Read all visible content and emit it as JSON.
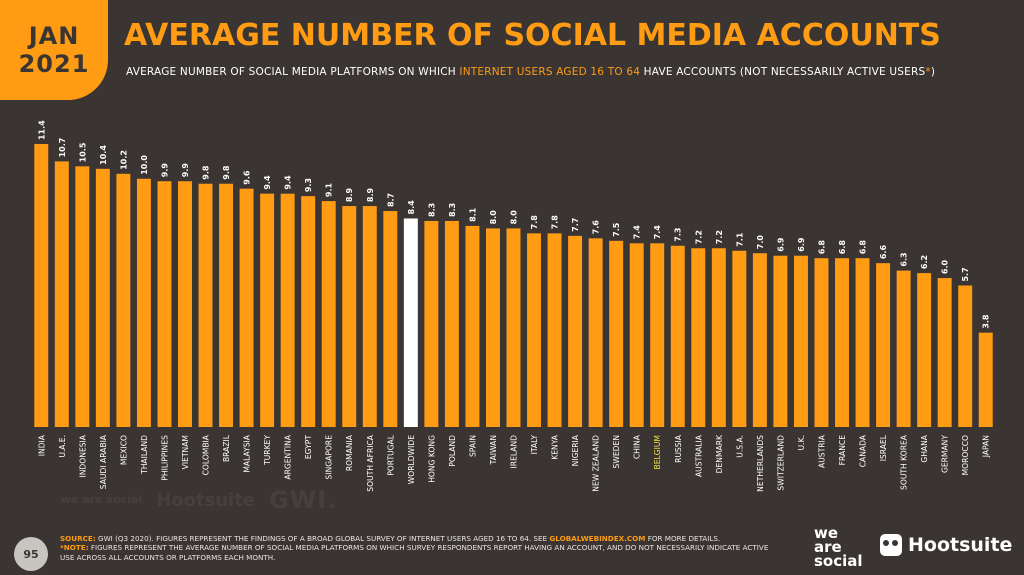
{
  "header": {
    "month": "JAN",
    "year": "2021",
    "title": "AVERAGE NUMBER OF SOCIAL MEDIA ACCOUNTS",
    "subtitle_pre": "AVERAGE NUMBER OF SOCIAL MEDIA PLATFORMS ON WHICH ",
    "subtitle_highlight": "INTERNET USERS AGED 16 TO 64",
    "subtitle_post": " HAVE ACCOUNTS (NOT NECESSARILY ACTIVE USERS",
    "subtitle_star": "*",
    "subtitle_end": ")"
  },
  "watermark": {
    "we_are_social": "we are social",
    "hootsuite": "Hootsuite",
    "gwi": "GWI."
  },
  "chart_data": {
    "type": "bar",
    "title": "",
    "xlabel": "",
    "ylabel": "",
    "ylim": [
      0,
      11.4
    ],
    "grid": false,
    "categories": [
      "INDIA",
      "U.A.E.",
      "INDONESIA",
      "SAUDI ARABIA",
      "MEXICO",
      "THAILAND",
      "PHILIPPINES",
      "VIETNAM",
      "COLOMBIA",
      "BRAZIL",
      "MALAYSIA",
      "TURKEY",
      "ARGENTINA",
      "EGYPT",
      "SINGAPORE",
      "ROMANIA",
      "SOUTH AFRICA",
      "PORTUGAL",
      "WORLDWIDE",
      "HONG KONG",
      "POLAND",
      "SPAIN",
      "TAIWAN",
      "IRELAND",
      "ITALY",
      "KENYA",
      "NIGERIA",
      "NEW ZEALAND",
      "SWEDEN",
      "CHINA",
      "BELGIUM",
      "RUSSIA",
      "AUSTRALIA",
      "DENMARK",
      "U.S.A.",
      "NETHERLANDS",
      "SWITZERLAND",
      "U.K.",
      "AUSTRIA",
      "FRANCE",
      "CANADA",
      "ISRAEL",
      "SOUTH KOREA",
      "GHANA",
      "GERMANY",
      "MOROCCO",
      "JAPAN"
    ],
    "values": [
      11.4,
      10.7,
      10.5,
      10.4,
      10.2,
      10.0,
      9.9,
      9.9,
      9.8,
      9.8,
      9.6,
      9.4,
      9.4,
      9.3,
      9.1,
      8.9,
      8.9,
      8.7,
      8.4,
      8.3,
      8.3,
      8.1,
      8.0,
      8.0,
      7.8,
      7.8,
      7.7,
      7.6,
      7.5,
      7.4,
      7.4,
      7.3,
      7.2,
      7.2,
      7.1,
      7.0,
      6.9,
      6.9,
      6.8,
      6.8,
      6.8,
      6.6,
      6.3,
      6.2,
      6.0,
      5.7,
      3.8
    ],
    "value_labels": [
      "11.4",
      "10.7",
      "10.5",
      "10.4",
      "10.2",
      "10.0",
      "9.9",
      "9.9",
      "9.8",
      "9.8",
      "9.6",
      "9.4",
      "9.4",
      "9.3",
      "9.1",
      "8.9",
      "8.9",
      "8.7",
      "8.4",
      "8.3",
      "8.3",
      "8.1",
      "8.0",
      "8.0",
      "7.8",
      "7.8",
      "7.7",
      "7.6",
      "7.5",
      "7.4",
      "7.4",
      "7.3",
      "7.2",
      "7.2",
      "7.1",
      "7.0",
      "6.9",
      "6.9",
      "6.8",
      "6.8",
      "6.8",
      "6.6",
      "6.3",
      "6.2",
      "6.0",
      "5.7",
      "3.8"
    ],
    "highlight_bar": "WORLDWIDE",
    "highlight_label": "BELGIUM",
    "colors": {
      "bar": "#ff9c14",
      "highlight_bar": "#ffffff",
      "highlight_label": "#f5e642",
      "plot_background": "#3a3532",
      "text": "#ffffff"
    }
  },
  "footer": {
    "page_number": "95",
    "source_label": "SOURCE:",
    "source_text": " GWI (Q3 2020). FIGURES REPRESENT THE FINDINGS OF A BROAD GLOBAL SURVEY OF INTERNET USERS AGED 16 TO 64. SEE ",
    "source_link": "GLOBALWEBINDEX.COM",
    "source_end": " FOR MORE DETAILS.",
    "note_label": "*NOTE:",
    "note_text": " FIGURES REPRESENT THE AVERAGE NUMBER OF SOCIAL MEDIA PLATFORMS ON WHICH SURVEY RESPONDENTS REPORT HAVING AN ACCOUNT, AND DO NOT NECESSARILY INDICATE ACTIVE USE ACROSS ALL ACCOUNTS OR PLATFORMS EACH MONTH.",
    "brand_we": "we",
    "brand_are": "are",
    "brand_social": "social",
    "brand_hootsuite": "Hootsuite"
  }
}
